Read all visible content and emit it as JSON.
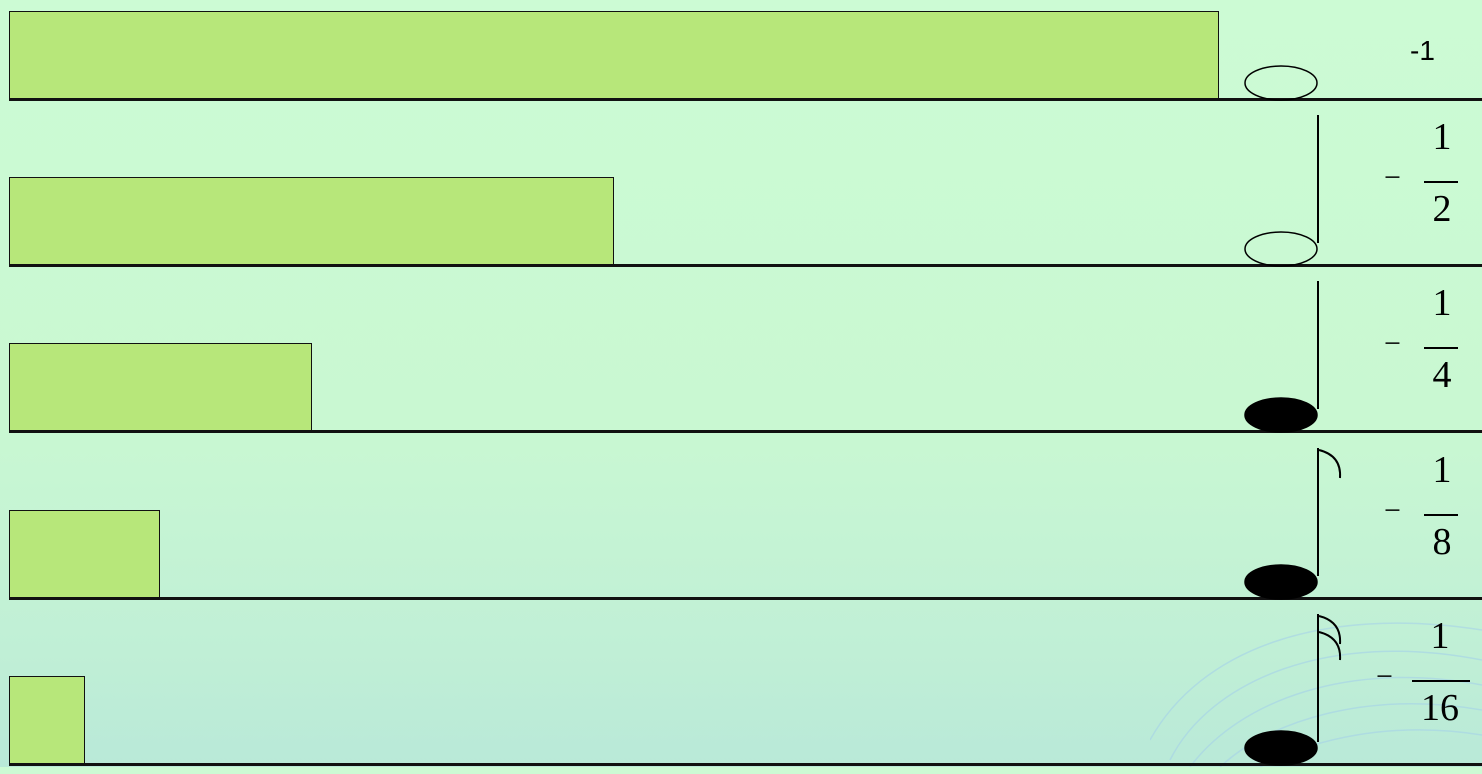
{
  "rows": [
    {
      "value": 1,
      "note": "whole-note",
      "label": "-1"
    },
    {
      "value": 0.5,
      "note": "half-note",
      "label": {
        "sign": "−",
        "num": "1",
        "den": "2"
      }
    },
    {
      "value": 0.25,
      "note": "quarter-note",
      "label": {
        "sign": "−",
        "num": "1",
        "den": "4"
      }
    },
    {
      "value": 0.125,
      "note": "eighth-note",
      "label": {
        "sign": "−",
        "num": "1",
        "den": "8"
      }
    },
    {
      "value": 0.0625,
      "note": "sixteenth-note",
      "label": {
        "sign": "−",
        "num": "1",
        "den": "16"
      }
    }
  ]
}
